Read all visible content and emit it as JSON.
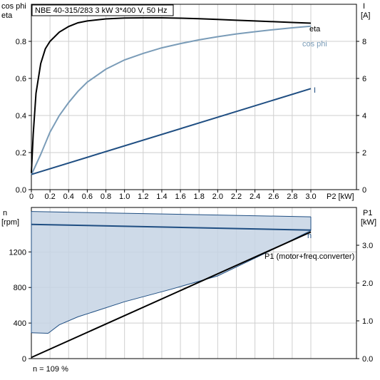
{
  "title": "NBE 40-315/283    3 kW    3*400 V, 50 Hz",
  "footer": "n = 109 %",
  "colors": {
    "eta": "#000000",
    "cos_phi": "#7a9cb8",
    "current": "#1f4e82",
    "speed_fill": "#c5d4e4",
    "speed_line": "#1f4e82",
    "p1": "#000000"
  },
  "chart_data": [
    {
      "type": "line",
      "name": "top",
      "xlabel": "P2 [kW]",
      "ylabel_left": [
        "cos phi",
        "eta"
      ],
      "ylabel_right": [
        "I",
        "[A]"
      ],
      "xlim": [
        0,
        3.0
      ],
      "ylim_left": [
        0,
        1.0
      ],
      "ylim_right": [
        0,
        10.0
      ],
      "x_ticks": [
        "0",
        "0.2",
        "0.4",
        "0.6",
        "0.8",
        "1.0",
        "1.2",
        "1.4",
        "1.6",
        "1.8",
        "2.0",
        "2.2",
        "2.4",
        "2.6",
        "2.8",
        "3.0"
      ],
      "y_left_ticks": [
        "0.0",
        "0.2",
        "0.4",
        "0.6",
        "0.8"
      ],
      "y_right_ticks": [
        "0",
        "2",
        "4",
        "6",
        "8"
      ],
      "grid": true,
      "series": [
        {
          "name": "eta",
          "axis": "left",
          "x": [
            0,
            0.02,
            0.05,
            0.1,
            0.15,
            0.2,
            0.3,
            0.4,
            0.5,
            0.6,
            0.8,
            1.0,
            1.2,
            1.4,
            1.6,
            1.8,
            2.0,
            2.2,
            2.4,
            2.6,
            2.8,
            3.0
          ],
          "y": [
            0.09,
            0.3,
            0.52,
            0.68,
            0.76,
            0.8,
            0.85,
            0.88,
            0.9,
            0.91,
            0.921,
            0.926,
            0.927,
            0.927,
            0.925,
            0.922,
            0.918,
            0.914,
            0.91,
            0.906,
            0.902,
            0.898
          ]
        },
        {
          "name": "cos phi",
          "axis": "left",
          "x": [
            0,
            0.1,
            0.2,
            0.3,
            0.4,
            0.5,
            0.6,
            0.8,
            1.0,
            1.2,
            1.4,
            1.6,
            1.8,
            2.0,
            2.2,
            2.4,
            2.6,
            2.8,
            3.0
          ],
          "y": [
            0.08,
            0.19,
            0.31,
            0.4,
            0.47,
            0.53,
            0.58,
            0.65,
            0.7,
            0.735,
            0.765,
            0.788,
            0.808,
            0.825,
            0.84,
            0.852,
            0.863,
            0.873,
            0.882
          ]
        },
        {
          "name": "I",
          "axis": "right",
          "x": [
            0,
            3.0
          ],
          "y": [
            0.82,
            5.45
          ]
        }
      ]
    },
    {
      "type": "area",
      "name": "bottom",
      "ylabel_left": [
        "n",
        "[rpm]"
      ],
      "ylabel_right": [
        "P1",
        "[kW]"
      ],
      "xlim": [
        0,
        3.0
      ],
      "ylim_left": [
        0,
        1700
      ],
      "ylim_right": [
        0,
        4.0
      ],
      "y_left_ticks": [
        "0",
        "400",
        "800",
        "1200"
      ],
      "y_right_ticks": [
        "0.0",
        "1.0",
        "2.0",
        "3.0"
      ],
      "grid": true,
      "speed_band": {
        "upper": {
          "x": [
            0,
            3.0
          ],
          "y": [
            1655,
            1595
          ]
        },
        "lower": {
          "x": [
            0,
            0.18,
            0.3,
            0.5,
            1.0,
            1.5,
            2.0,
            2.5,
            3.0
          ],
          "y": [
            290,
            285,
            380,
            470,
            640,
            780,
            930,
            1180,
            1440
          ]
        }
      },
      "series": [
        {
          "name": "n",
          "axis": "left",
          "x": [
            0,
            3.0
          ],
          "y": [
            1510,
            1445
          ]
        },
        {
          "name": "P1 (motor+freq.converter)",
          "axis": "right",
          "x": [
            0,
            3.0
          ],
          "y": [
            0.03,
            3.35
          ]
        }
      ]
    }
  ]
}
